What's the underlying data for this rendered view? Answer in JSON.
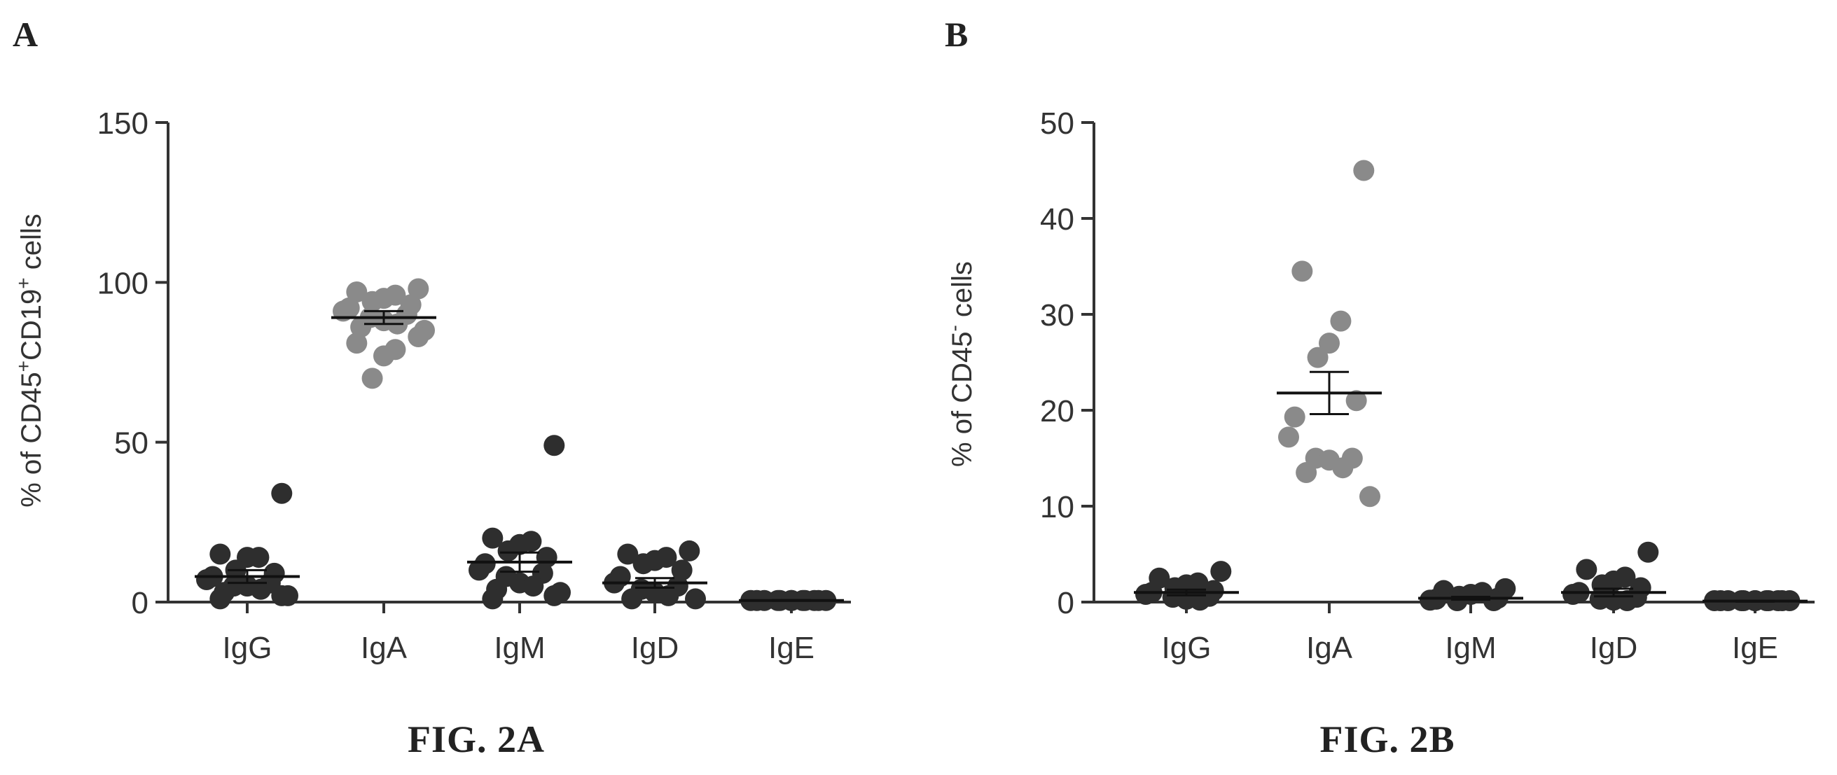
{
  "figures": [
    {
      "panel_letter": "A",
      "figure_label": "FIG. 2A"
    },
    {
      "panel_letter": "B",
      "figure_label": "FIG. 2B"
    }
  ],
  "colors": {
    "igA_points": "#8a8a8a",
    "other_points": "#2e2e2e",
    "axis": "#333333"
  },
  "chart_data": [
    {
      "type": "scatter",
      "title": "",
      "ylabel": {
        "prefix": "% of CD45",
        "sup1": "+",
        "mid": "CD19",
        "sup2": "+",
        "suffix": " cells"
      },
      "ylim": [
        0,
        150
      ],
      "yticks": [
        0,
        50,
        100,
        150
      ],
      "categories": [
        "IgG",
        "IgA",
        "IgM",
        "IgD",
        "IgE"
      ],
      "means": [
        8,
        89,
        12.5,
        6,
        0.5
      ],
      "sems": [
        2,
        2,
        3,
        1.5,
        0.1
      ],
      "series": [
        {
          "category": "IgG",
          "values": [
            34,
            15,
            14,
            14,
            10,
            9,
            8,
            7,
            6,
            5,
            5,
            4,
            3,
            2,
            2,
            1
          ]
        },
        {
          "category": "IgA",
          "values": [
            98,
            97,
            96,
            95,
            94,
            93,
            92,
            91,
            90,
            89,
            88,
            87,
            86,
            85,
            83,
            81,
            79,
            77,
            70
          ]
        },
        {
          "category": "IgM",
          "values": [
            49,
            20,
            19,
            18,
            16,
            14,
            12,
            10,
            9,
            8,
            6,
            5,
            4,
            3,
            2,
            1
          ]
        },
        {
          "category": "IgD",
          "values": [
            16,
            15,
            14,
            13,
            12,
            10,
            8,
            6,
            5,
            4,
            3,
            2,
            1,
            1
          ]
        },
        {
          "category": "IgE",
          "values": [
            0.5,
            0.5,
            0.5,
            0.5,
            0.5,
            0.5,
            0.5,
            0.5,
            0.5,
            0.5,
            0.5,
            0.5
          ]
        }
      ]
    },
    {
      "type": "scatter",
      "title": "",
      "ylabel": {
        "prefix": "% of CD45",
        "sup1": "-",
        "mid": "",
        "sup2": "",
        "suffix": " cells"
      },
      "ylim": [
        0,
        50
      ],
      "yticks": [
        0,
        10,
        20,
        30,
        40,
        50
      ],
      "categories": [
        "IgG",
        "IgA",
        "IgM",
        "IgD",
        "IgE"
      ],
      "means": [
        1,
        21.8,
        0.4,
        1,
        0.1
      ],
      "sems": [
        0.3,
        2.2,
        0.15,
        0.4,
        0.05
      ],
      "series": [
        {
          "category": "IgG",
          "values": [
            3.2,
            2.5,
            2,
            1.8,
            1.5,
            1.2,
            1,
            0.8,
            0.6,
            0.5,
            0.3,
            0.2
          ]
        },
        {
          "category": "IgA",
          "values": [
            45,
            34.5,
            29.3,
            27,
            25.5,
            21,
            19.3,
            17.2,
            15,
            15,
            14.8,
            14,
            13.5,
            11
          ]
        },
        {
          "category": "IgM",
          "values": [
            1.4,
            1.2,
            1,
            0.8,
            0.6,
            0.4,
            0.3,
            0.2,
            0.1,
            0.1
          ]
        },
        {
          "category": "IgD",
          "values": [
            5.2,
            3.4,
            2.6,
            2.2,
            1.8,
            1.5,
            1,
            0.8,
            0.5,
            0.3,
            0.2,
            0.1
          ]
        },
        {
          "category": "IgE",
          "values": [
            0.05,
            0.05,
            0.05,
            0.05,
            0.05,
            0.05,
            0.05,
            0.05,
            0.05,
            0.05,
            0.05,
            0.05
          ]
        }
      ]
    }
  ]
}
